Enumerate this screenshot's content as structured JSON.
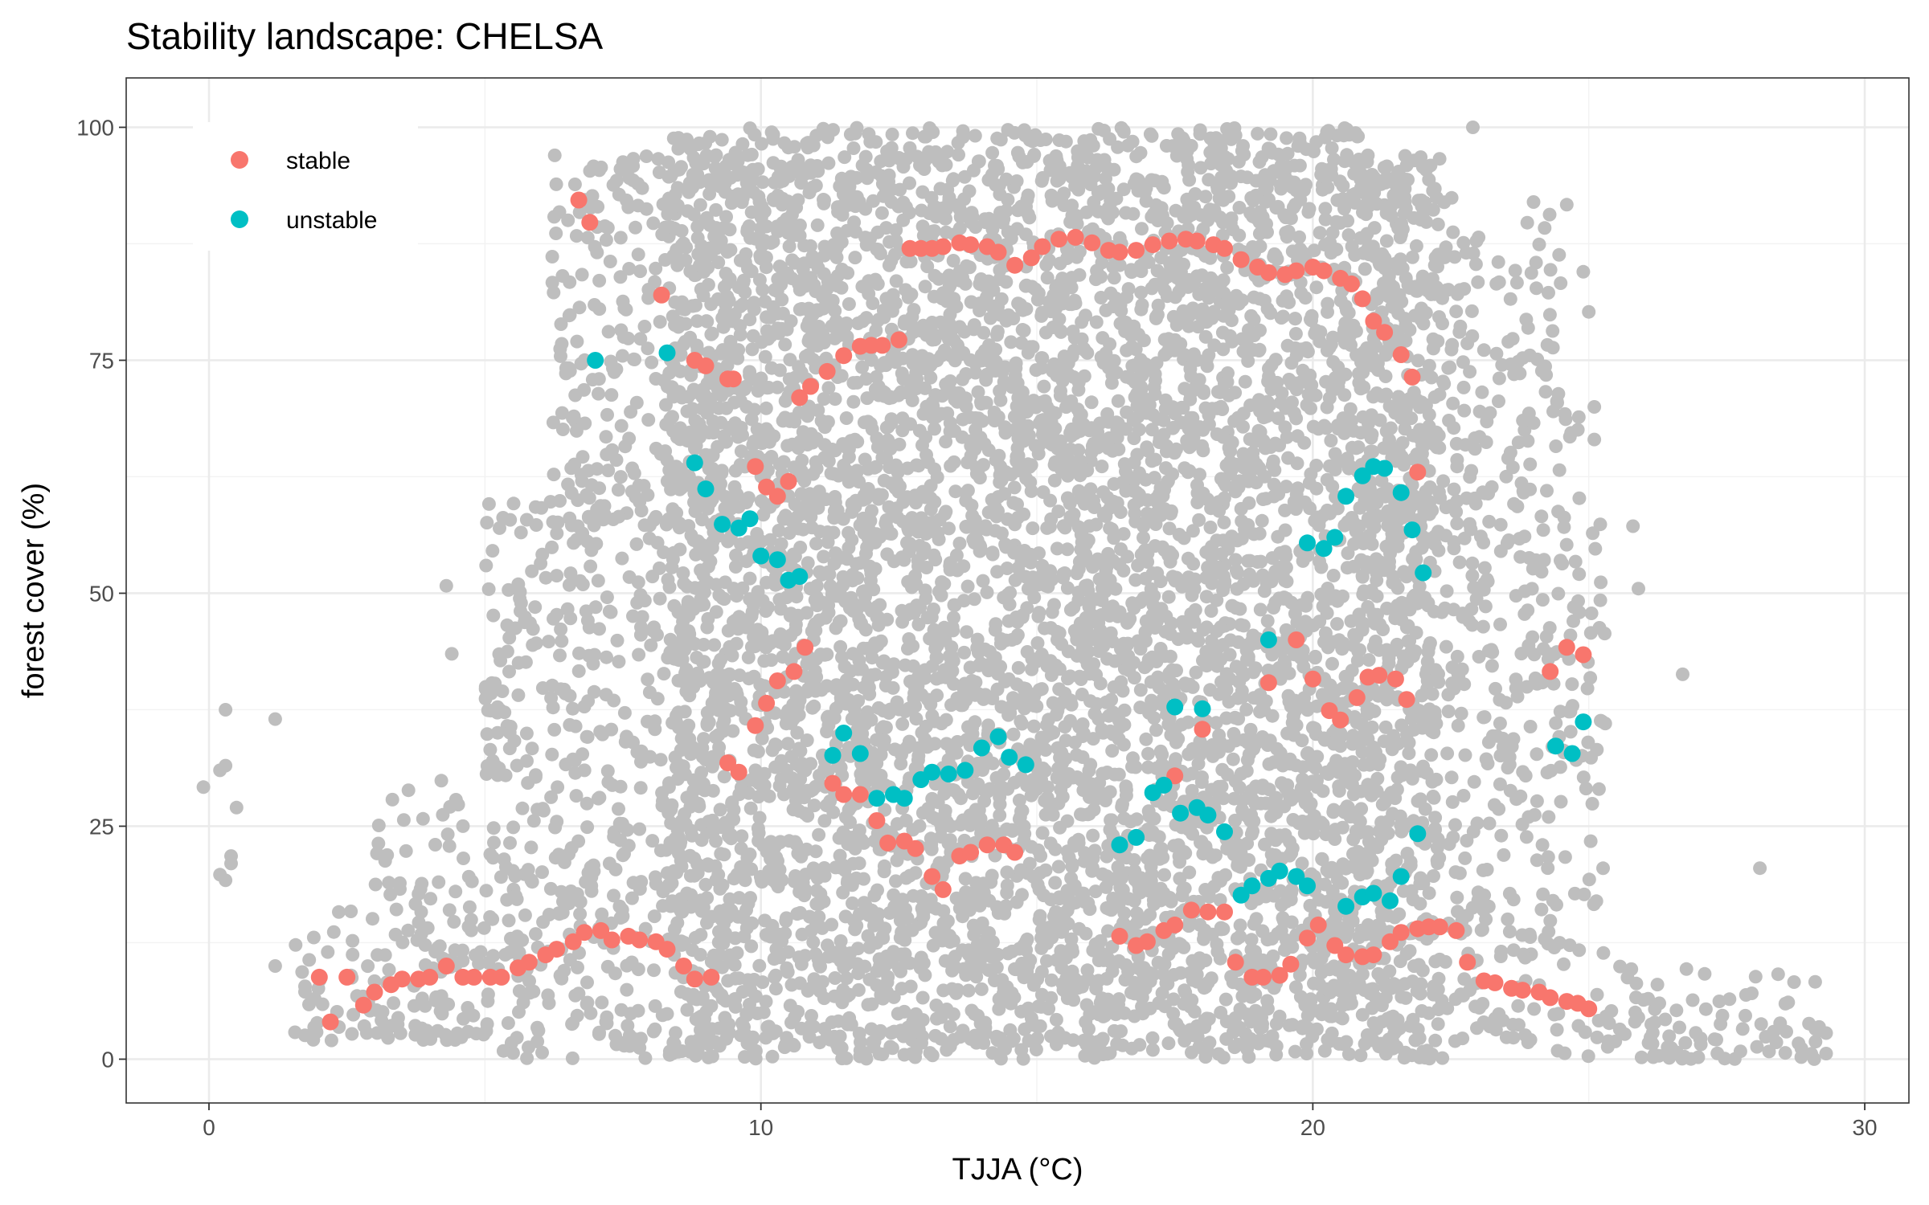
{
  "chart_data": {
    "type": "scatter",
    "title": "Stability landscape: CHELSA",
    "xlabel": "TJJA (°C)",
    "ylabel": "forest cover (%)",
    "xlim": [
      -1.5,
      30.8
    ],
    "ylim": [
      -4.7,
      105.3
    ],
    "x_ticks": [
      0,
      10,
      20,
      30
    ],
    "y_ticks": [
      0,
      25,
      50,
      75,
      100
    ],
    "grid": true,
    "legend_position": "top-left",
    "background_points": {
      "color": "#bebebe",
      "description_of_density": "dense grey cloud of observations; core cluster between about 9 and 22 °C spanning 0–100 % forest cover, sparser tails from 0 to 29 °C",
      "bands": [
        {
          "x0": 9.5,
          "x1": 21.0,
          "y0": 0,
          "y1": 100,
          "count": 5200
        },
        {
          "x0": 8.3,
          "x1": 9.5,
          "y0": 0,
          "y1": 99,
          "count": 650
        },
        {
          "x0": 21.0,
          "x1": 22.3,
          "y0": 0,
          "y1": 97,
          "count": 650
        },
        {
          "x0": 6.2,
          "x1": 8.3,
          "y0": 0,
          "y1": 97,
          "count": 420
        },
        {
          "x0": 22.3,
          "x1": 24.5,
          "y0": 0,
          "y1": 93,
          "count": 380
        },
        {
          "x0": 5.0,
          "x1": 6.2,
          "y0": 0,
          "y1": 60,
          "count": 160
        },
        {
          "x0": 24.5,
          "x1": 25.3,
          "y0": 0,
          "y1": 70,
          "count": 70
        },
        {
          "x0": 3.0,
          "x1": 5.0,
          "y0": 2,
          "y1": 30,
          "count": 120
        },
        {
          "x0": 1.5,
          "x1": 3.0,
          "y0": 2,
          "y1": 16,
          "count": 40
        },
        {
          "x0": 25.3,
          "x1": 29.3,
          "y0": 0,
          "y1": 10,
          "count": 90
        }
      ],
      "outliers": [
        [
          -0.1,
          29.2
        ],
        [
          0.2,
          31.0
        ],
        [
          0.3,
          31.5
        ],
        [
          0.3,
          37.5
        ],
        [
          0.5,
          27.0
        ],
        [
          0.2,
          19.8
        ],
        [
          0.3,
          19.2
        ],
        [
          0.4,
          21.0
        ],
        [
          0.4,
          21.8
        ],
        [
          1.2,
          36.5
        ],
        [
          1.2,
          10.0
        ],
        [
          4.3,
          50.8
        ],
        [
          4.4,
          43.5
        ],
        [
          26.7,
          41.3
        ],
        [
          28.1,
          20.5
        ],
        [
          25.1,
          70.0
        ],
        [
          25.1,
          66.5
        ],
        [
          25.0,
          80.2
        ],
        [
          24.6,
          91.7
        ],
        [
          22.9,
          100.0
        ],
        [
          29.3,
          2.8
        ],
        [
          29.3,
          0.6
        ],
        [
          28.8,
          1.7
        ],
        [
          25.8,
          57.2
        ],
        [
          25.9,
          50.5
        ],
        [
          24.2,
          89.2
        ],
        [
          24.9,
          84.5
        ]
      ]
    },
    "series": [
      {
        "name": "stable",
        "color": "#f8766d",
        "points": [
          [
            6.7,
            92.2
          ],
          [
            6.9,
            89.8
          ],
          [
            8.2,
            82.0
          ],
          [
            8.8,
            75.0
          ],
          [
            9.0,
            74.4
          ],
          [
            9.4,
            73.0
          ],
          [
            9.5,
            73.0
          ],
          [
            10.7,
            71.0
          ],
          [
            10.9,
            72.2
          ],
          [
            11.2,
            73.8
          ],
          [
            11.5,
            75.5
          ],
          [
            11.8,
            76.5
          ],
          [
            12.0,
            76.6
          ],
          [
            12.2,
            76.6
          ],
          [
            12.5,
            77.2
          ],
          [
            12.7,
            87.0
          ],
          [
            12.9,
            87.0
          ],
          [
            13.1,
            87.0
          ],
          [
            13.3,
            87.2
          ],
          [
            13.6,
            87.6
          ],
          [
            13.8,
            87.4
          ],
          [
            14.1,
            87.2
          ],
          [
            14.3,
            86.6
          ],
          [
            14.6,
            85.2
          ],
          [
            14.9,
            86.0
          ],
          [
            15.1,
            87.2
          ],
          [
            15.4,
            88.0
          ],
          [
            15.7,
            88.2
          ],
          [
            16.0,
            87.6
          ],
          [
            16.3,
            86.8
          ],
          [
            16.5,
            86.6
          ],
          [
            16.8,
            86.8
          ],
          [
            17.1,
            87.4
          ],
          [
            17.4,
            87.8
          ],
          [
            17.7,
            88.0
          ],
          [
            17.9,
            87.8
          ],
          [
            18.2,
            87.4
          ],
          [
            18.4,
            87.0
          ],
          [
            18.7,
            85.8
          ],
          [
            19.0,
            85.0
          ],
          [
            19.2,
            84.4
          ],
          [
            19.5,
            84.2
          ],
          [
            19.7,
            84.6
          ],
          [
            20.0,
            85.0
          ],
          [
            20.2,
            84.6
          ],
          [
            20.5,
            83.8
          ],
          [
            20.7,
            83.2
          ],
          [
            20.9,
            81.6
          ],
          [
            21.1,
            79.2
          ],
          [
            21.3,
            78.0
          ],
          [
            21.6,
            75.6
          ],
          [
            21.8,
            73.2
          ],
          [
            9.9,
            63.6
          ],
          [
            10.1,
            61.4
          ],
          [
            10.3,
            60.4
          ],
          [
            10.5,
            62.0
          ],
          [
            21.9,
            63.0
          ],
          [
            9.4,
            31.8
          ],
          [
            9.6,
            30.8
          ],
          [
            9.9,
            35.8
          ],
          [
            10.1,
            38.2
          ],
          [
            10.3,
            40.6
          ],
          [
            10.6,
            41.6
          ],
          [
            10.8,
            44.2
          ],
          [
            11.3,
            29.6
          ],
          [
            11.5,
            28.4
          ],
          [
            11.8,
            28.4
          ],
          [
            12.1,
            25.6
          ],
          [
            12.3,
            23.2
          ],
          [
            12.6,
            23.4
          ],
          [
            12.8,
            22.6
          ],
          [
            13.1,
            19.6
          ],
          [
            13.3,
            18.2
          ],
          [
            13.6,
            21.8
          ],
          [
            13.8,
            22.2
          ],
          [
            14.1,
            23.0
          ],
          [
            14.4,
            23.0
          ],
          [
            14.6,
            22.2
          ],
          [
            16.5,
            13.2
          ],
          [
            16.8,
            12.2
          ],
          [
            17.0,
            12.6
          ],
          [
            17.3,
            13.8
          ],
          [
            17.5,
            14.4
          ],
          [
            17.8,
            16.0
          ],
          [
            18.1,
            15.8
          ],
          [
            18.4,
            15.8
          ],
          [
            17.5,
            30.4
          ],
          [
            18.0,
            35.4
          ],
          [
            18.6,
            10.4
          ],
          [
            18.9,
            8.8
          ],
          [
            19.1,
            8.8
          ],
          [
            19.4,
            9.0
          ],
          [
            19.6,
            10.2
          ],
          [
            19.9,
            13.0
          ],
          [
            20.1,
            14.4
          ],
          [
            20.4,
            12.2
          ],
          [
            20.6,
            11.2
          ],
          [
            20.9,
            11.0
          ],
          [
            21.1,
            11.2
          ],
          [
            21.4,
            12.6
          ],
          [
            21.6,
            13.6
          ],
          [
            21.9,
            14.0
          ],
          [
            22.1,
            14.2
          ],
          [
            22.3,
            14.2
          ],
          [
            22.6,
            13.8
          ],
          [
            22.8,
            10.4
          ],
          [
            23.1,
            8.4
          ],
          [
            23.3,
            8.2
          ],
          [
            23.6,
            7.6
          ],
          [
            23.8,
            7.4
          ],
          [
            24.1,
            7.2
          ],
          [
            24.3,
            6.6
          ],
          [
            24.6,
            6.2
          ],
          [
            24.8,
            6.0
          ],
          [
            25.0,
            5.4
          ],
          [
            19.2,
            40.4
          ],
          [
            19.7,
            45.0
          ],
          [
            20.0,
            40.8
          ],
          [
            20.3,
            37.4
          ],
          [
            20.5,
            36.4
          ],
          [
            20.8,
            38.8
          ],
          [
            21.0,
            41.0
          ],
          [
            21.2,
            41.2
          ],
          [
            21.5,
            40.8
          ],
          [
            21.7,
            38.6
          ],
          [
            24.3,
            41.6
          ],
          [
            24.6,
            44.2
          ],
          [
            24.9,
            43.4
          ],
          [
            2.0,
            8.8
          ],
          [
            2.2,
            4.0
          ],
          [
            2.5,
            8.8
          ],
          [
            2.8,
            5.8
          ],
          [
            3.0,
            7.2
          ],
          [
            3.3,
            8.0
          ],
          [
            3.5,
            8.6
          ],
          [
            3.8,
            8.6
          ],
          [
            4.0,
            8.8
          ],
          [
            4.3,
            10.0
          ],
          [
            4.6,
            8.8
          ],
          [
            4.8,
            8.8
          ],
          [
            5.1,
            8.8
          ],
          [
            5.3,
            8.8
          ],
          [
            5.6,
            9.8
          ],
          [
            5.8,
            10.4
          ],
          [
            6.1,
            11.2
          ],
          [
            6.3,
            11.8
          ],
          [
            6.6,
            12.6
          ],
          [
            6.8,
            13.6
          ],
          [
            7.1,
            13.8
          ],
          [
            7.3,
            12.8
          ],
          [
            7.6,
            13.2
          ],
          [
            7.8,
            12.8
          ],
          [
            8.1,
            12.6
          ],
          [
            8.3,
            11.8
          ],
          [
            8.6,
            10.0
          ],
          [
            8.8,
            8.6
          ],
          [
            9.1,
            8.8
          ]
        ]
      },
      {
        "name": "unstable",
        "color": "#00bfc4",
        "points": [
          [
            7.0,
            75.0
          ],
          [
            8.3,
            75.8
          ],
          [
            8.8,
            64.0
          ],
          [
            9.0,
            61.2
          ],
          [
            9.3,
            57.4
          ],
          [
            9.6,
            57.0
          ],
          [
            9.8,
            58.0
          ],
          [
            10.0,
            54.0
          ],
          [
            10.3,
            53.6
          ],
          [
            10.5,
            51.4
          ],
          [
            10.7,
            51.8
          ],
          [
            11.3,
            32.6
          ],
          [
            11.5,
            35.0
          ],
          [
            11.8,
            32.8
          ],
          [
            12.1,
            28.0
          ],
          [
            12.4,
            28.4
          ],
          [
            12.6,
            28.0
          ],
          [
            12.9,
            30.0
          ],
          [
            13.1,
            30.8
          ],
          [
            13.4,
            30.6
          ],
          [
            13.7,
            31.0
          ],
          [
            14.0,
            33.4
          ],
          [
            14.3,
            34.6
          ],
          [
            14.5,
            32.4
          ],
          [
            14.8,
            31.6
          ],
          [
            16.5,
            23.0
          ],
          [
            16.8,
            23.8
          ],
          [
            17.1,
            28.6
          ],
          [
            17.3,
            29.4
          ],
          [
            17.6,
            26.4
          ],
          [
            17.9,
            27.0
          ],
          [
            18.1,
            26.2
          ],
          [
            18.4,
            24.4
          ],
          [
            17.5,
            37.8
          ],
          [
            18.0,
            37.6
          ],
          [
            18.7,
            17.6
          ],
          [
            18.9,
            18.6
          ],
          [
            19.2,
            19.4
          ],
          [
            19.4,
            20.2
          ],
          [
            19.7,
            19.6
          ],
          [
            19.9,
            18.6
          ],
          [
            19.2,
            45.0
          ],
          [
            19.9,
            55.4
          ],
          [
            20.2,
            54.8
          ],
          [
            20.4,
            56.0
          ],
          [
            20.6,
            60.4
          ],
          [
            20.9,
            62.6
          ],
          [
            21.1,
            63.6
          ],
          [
            21.3,
            63.4
          ],
          [
            21.6,
            60.8
          ],
          [
            21.8,
            56.8
          ],
          [
            22.0,
            52.2
          ],
          [
            20.6,
            16.4
          ],
          [
            20.9,
            17.4
          ],
          [
            21.1,
            17.8
          ],
          [
            21.4,
            17.0
          ],
          [
            21.6,
            19.6
          ],
          [
            21.9,
            24.2
          ],
          [
            24.4,
            33.6
          ],
          [
            24.7,
            32.8
          ],
          [
            24.9,
            36.2
          ]
        ]
      }
    ]
  }
}
